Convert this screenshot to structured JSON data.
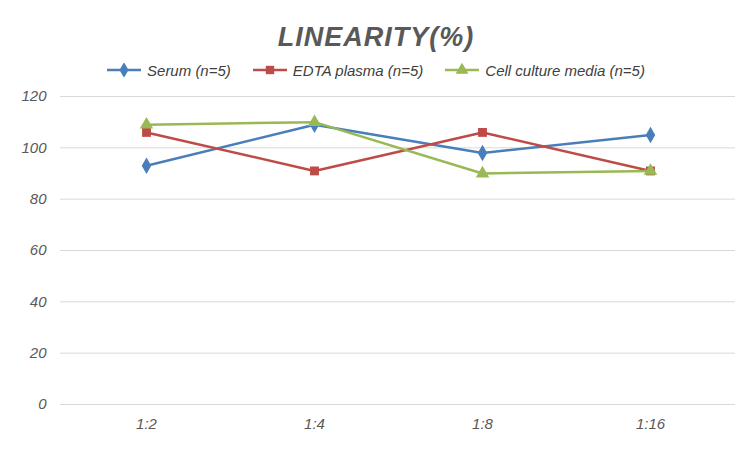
{
  "chart_data": {
    "type": "line",
    "title": "LINEARITY(%)",
    "categories": [
      "1:2",
      "1:4",
      "1:8",
      "1:16"
    ],
    "series": [
      {
        "name": "Serum (n=5)",
        "color": "#4a7ebb",
        "marker": "diamond",
        "values": [
          93,
          109,
          98,
          105
        ]
      },
      {
        "name": "EDTA plasma (n=5)",
        "color": "#be4b48",
        "marker": "square",
        "values": [
          106,
          91,
          106,
          91
        ]
      },
      {
        "name": "Cell culture media (n=5)",
        "color": "#98b954",
        "marker": "triangle",
        "values": [
          109,
          110,
          90,
          91
        ]
      }
    ],
    "ylim": [
      0,
      120
    ],
    "yticks": [
      0,
      20,
      40,
      60,
      80,
      100,
      120
    ],
    "grid": true,
    "legend": "top"
  }
}
